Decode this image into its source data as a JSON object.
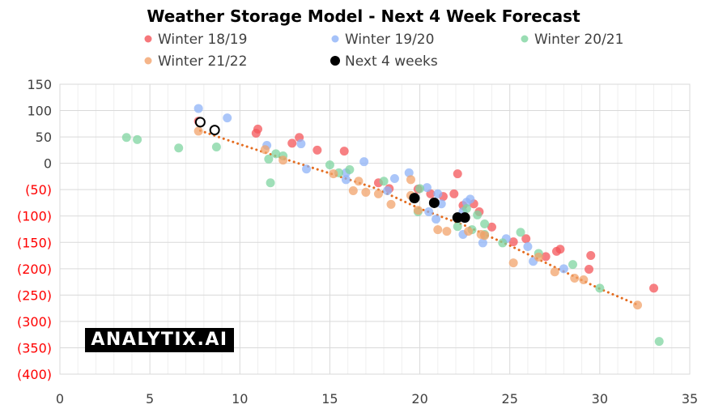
{
  "chart_data": {
    "type": "scatter",
    "title": "Weather Storage Model - Next 4 Week Forecast",
    "xlabel": "",
    "ylabel": "",
    "xlim": [
      0,
      35
    ],
    "ylim": [
      -400,
      150
    ],
    "x_ticks": [
      0,
      5,
      10,
      15,
      20,
      25,
      30,
      35
    ],
    "y_ticks": [
      150,
      100,
      50,
      0,
      -50,
      -100,
      -150,
      -200,
      -250,
      -300,
      -350,
      -400
    ],
    "y_tick_labels": [
      "150",
      "100",
      "50",
      "0",
      "(50)",
      "(100)",
      "(150)",
      "(200)",
      "(250)",
      "(300)",
      "(350)",
      "(400)"
    ],
    "negative_label_color": "#ff0000",
    "grid": true,
    "legend_position": "top",
    "series": [
      {
        "name": "Winter 18/19",
        "color": "#f4555a",
        "points": [
          [
            7.7,
            80
          ],
          [
            11.0,
            65
          ],
          [
            10.9,
            57
          ],
          [
            13.3,
            49
          ],
          [
            12.9,
            38
          ],
          [
            14.3,
            25
          ],
          [
            15.8,
            23
          ],
          [
            17.7,
            -37
          ],
          [
            18.3,
            -48
          ],
          [
            19.9,
            -49
          ],
          [
            20.6,
            -58
          ],
          [
            21.3,
            -63
          ],
          [
            22.1,
            -20
          ],
          [
            21.9,
            -58
          ],
          [
            22.4,
            -80
          ],
          [
            23.0,
            -77
          ],
          [
            23.3,
            -92
          ],
          [
            22.5,
            -101
          ],
          [
            24.0,
            -121
          ],
          [
            25.2,
            -149
          ],
          [
            25.9,
            -143
          ],
          [
            27.0,
            -177
          ],
          [
            27.6,
            -167
          ],
          [
            27.8,
            -163
          ],
          [
            29.5,
            -175
          ],
          [
            29.4,
            -201
          ],
          [
            33.0,
            -237
          ]
        ]
      },
      {
        "name": "Winter 19/20",
        "color": "#8fb3f7",
        "points": [
          [
            7.7,
            104
          ],
          [
            9.3,
            86
          ],
          [
            11.5,
            34
          ],
          [
            13.4,
            37
          ],
          [
            13.7,
            -11
          ],
          [
            16.9,
            3
          ],
          [
            15.9,
            -18
          ],
          [
            15.9,
            -31
          ],
          [
            18.2,
            -52
          ],
          [
            18.6,
            -29
          ],
          [
            19.4,
            -18
          ],
          [
            20.4,
            -46
          ],
          [
            21.0,
            -58
          ],
          [
            21.2,
            -77
          ],
          [
            20.5,
            -92
          ],
          [
            20.9,
            -106
          ],
          [
            22.8,
            -68
          ],
          [
            22.6,
            -74
          ],
          [
            22.4,
            -92
          ],
          [
            22.4,
            -135
          ],
          [
            23.5,
            -151
          ],
          [
            24.8,
            -143
          ],
          [
            26.0,
            -158
          ],
          [
            26.3,
            -186
          ],
          [
            28.0,
            -200
          ]
        ]
      },
      {
        "name": "Winter 20/21",
        "color": "#7fd4a0",
        "points": [
          [
            3.7,
            49
          ],
          [
            4.3,
            45
          ],
          [
            6.6,
            29
          ],
          [
            8.7,
            31
          ],
          [
            11.6,
            8
          ],
          [
            11.7,
            -37
          ],
          [
            12.0,
            18
          ],
          [
            12.4,
            14
          ],
          [
            15.0,
            -3
          ],
          [
            16.1,
            -12
          ],
          [
            15.5,
            -18
          ],
          [
            18.0,
            -34
          ],
          [
            20.0,
            -48
          ],
          [
            19.9,
            -92
          ],
          [
            22.1,
            -120
          ],
          [
            22.6,
            -86
          ],
          [
            23.2,
            -98
          ],
          [
            23.6,
            -115
          ],
          [
            22.9,
            -126
          ],
          [
            23.6,
            -135
          ],
          [
            24.6,
            -151
          ],
          [
            25.6,
            -131
          ],
          [
            26.6,
            -171
          ],
          [
            28.5,
            -192
          ],
          [
            30.0,
            -237
          ],
          [
            33.3,
            -338
          ]
        ]
      },
      {
        "name": "Winter 21/22",
        "color": "#f2a36b",
        "points": [
          [
            7.7,
            61
          ],
          [
            11.4,
            26
          ],
          [
            12.4,
            6
          ],
          [
            15.2,
            -20
          ],
          [
            16.3,
            -52
          ],
          [
            16.6,
            -34
          ],
          [
            17.0,
            -55
          ],
          [
            17.7,
            -58
          ],
          [
            18.4,
            -78
          ],
          [
            19.5,
            -61
          ],
          [
            19.5,
            -31
          ],
          [
            19.9,
            -89
          ],
          [
            21.0,
            -126
          ],
          [
            21.5,
            -129
          ],
          [
            22.7,
            -129
          ],
          [
            23.4,
            -135
          ],
          [
            23.6,
            -137
          ],
          [
            25.2,
            -189
          ],
          [
            26.6,
            -178
          ],
          [
            27.5,
            -206
          ],
          [
            28.6,
            -218
          ],
          [
            29.1,
            -221
          ],
          [
            32.1,
            -269
          ]
        ]
      },
      {
        "name": "Next 4 weeks",
        "color": "#000000",
        "points": [
          [
            19.7,
            -66
          ],
          [
            20.8,
            -75
          ],
          [
            22.1,
            -103
          ],
          [
            22.5,
            -103
          ]
        ]
      }
    ],
    "unlabeled_series": [
      {
        "name": "Next 4 weeks (hollow markers)",
        "color": "#000000",
        "marker": "hollow",
        "points": [
          [
            7.8,
            78
          ],
          [
            8.6,
            63
          ]
        ]
      }
    ],
    "trendline": {
      "type": "polynomial",
      "series": "Winter 21/22",
      "color": "#e46c1f",
      "style": "dotted",
      "points": [
        [
          7.8,
          62
        ],
        [
          10,
          36
        ],
        [
          12.5,
          8
        ],
        [
          15,
          -19
        ],
        [
          17.5,
          -47
        ],
        [
          20,
          -86
        ],
        [
          22.5,
          -118
        ],
        [
          25,
          -156
        ],
        [
          27.5,
          -197
        ],
        [
          30,
          -238
        ],
        [
          32.2,
          -270
        ]
      ]
    }
  },
  "watermark": {
    "text": "ANALYTIX.AI"
  }
}
